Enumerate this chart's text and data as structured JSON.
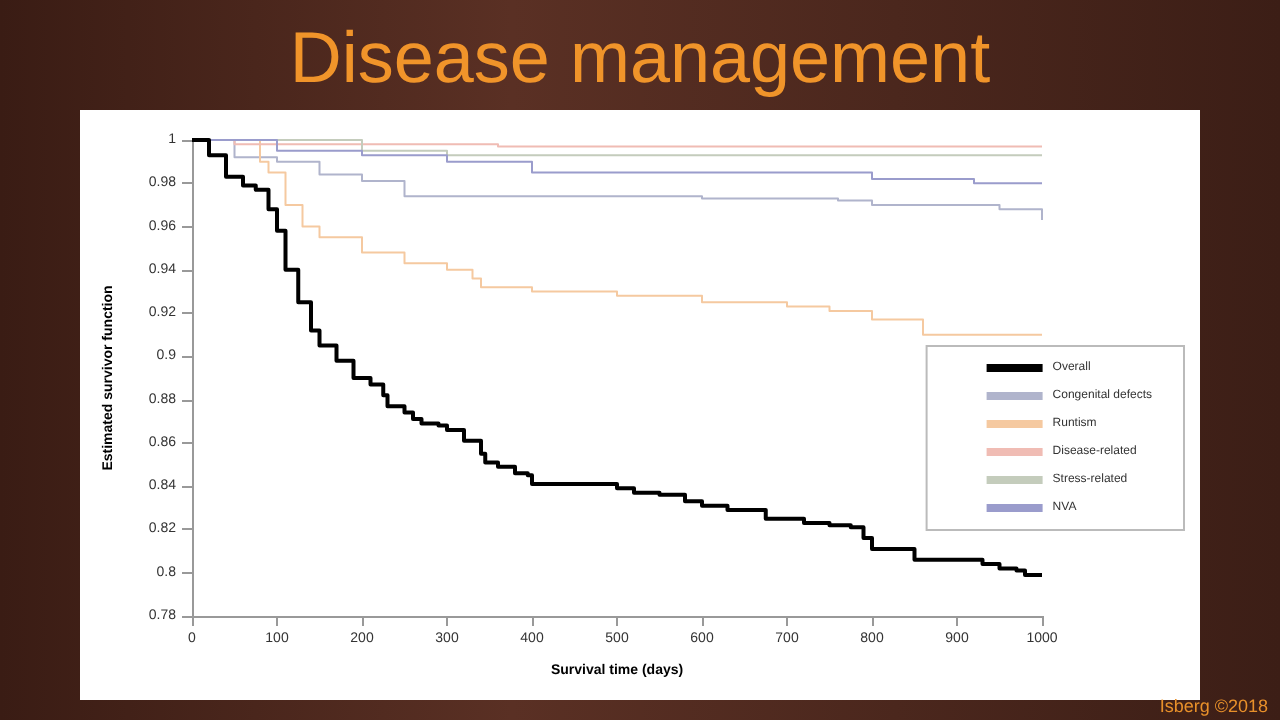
{
  "chart_data": {
    "type": "step",
    "title": "Disease management",
    "xlabel": "Survival time (days)",
    "ylabel": "Estimated survivor function",
    "xlim": [
      0,
      1000
    ],
    "xticks": [
      0,
      100,
      200,
      300,
      400,
      500,
      600,
      700,
      800,
      900,
      1000
    ],
    "ylim": [
      0.78,
      1
    ],
    "yticks": [
      0.78,
      0.8,
      0.82,
      0.84,
      0.86,
      0.88,
      0.9,
      0.92,
      0.94,
      0.96,
      0.98,
      1
    ],
    "grid": false,
    "legend": "right",
    "line_style": "solid",
    "marker": "none",
    "annotations": [
      "Isberg ©2018"
    ],
    "series": [
      {
        "name": "Overall",
        "color": "#000000",
        "x": [
          0,
          20,
          40,
          60,
          75,
          90,
          100,
          110,
          125,
          140,
          150,
          170,
          190,
          210,
          225,
          230,
          250,
          260,
          270,
          290,
          300,
          320,
          340,
          345,
          360,
          380,
          395,
          400,
          480,
          500,
          520,
          550,
          580,
          600,
          630,
          665,
          675,
          710,
          720,
          750,
          775,
          790,
          800,
          845,
          850,
          925,
          930,
          950,
          970,
          980,
          1000
        ],
        "values": [
          1,
          0.993,
          0.983,
          0.979,
          0.977,
          0.968,
          0.958,
          0.94,
          0.925,
          0.912,
          0.905,
          0.898,
          0.89,
          0.887,
          0.882,
          0.877,
          0.874,
          0.871,
          0.869,
          0.868,
          0.866,
          0.861,
          0.855,
          0.851,
          0.849,
          0.846,
          0.845,
          0.841,
          0.841,
          0.839,
          0.837,
          0.836,
          0.833,
          0.831,
          0.829,
          0.829,
          0.825,
          0.825,
          0.823,
          0.822,
          0.821,
          0.816,
          0.811,
          0.811,
          0.806,
          0.806,
          0.804,
          0.802,
          0.801,
          0.799,
          0.799
        ]
      },
      {
        "name": "Congenital defects",
        "color": "#b0b4cc",
        "x": [
          0,
          50,
          100,
          150,
          200,
          250,
          400,
          600,
          760,
          800,
          950,
          1000
        ],
        "values": [
          1,
          0.992,
          0.99,
          0.984,
          0.981,
          0.974,
          0.974,
          0.973,
          0.972,
          0.97,
          0.968,
          0.963
        ]
      },
      {
        "name": "Runtism",
        "color": "#f5c9a0",
        "x": [
          0,
          80,
          90,
          110,
          130,
          150,
          200,
          250,
          300,
          330,
          340,
          400,
          500,
          600,
          700,
          750,
          800,
          860,
          1000
        ],
        "values": [
          1,
          0.99,
          0.985,
          0.97,
          0.96,
          0.955,
          0.948,
          0.943,
          0.94,
          0.936,
          0.932,
          0.93,
          0.928,
          0.925,
          0.923,
          0.921,
          0.917,
          0.91,
          0.91
        ]
      },
      {
        "name": "Disease-related",
        "color": "#f0bcb4",
        "x": [
          0,
          50,
          360,
          1000
        ],
        "values": [
          1,
          0.998,
          0.997,
          0.997
        ]
      },
      {
        "name": "Stress-related",
        "color": "#c4ccbc",
        "x": [
          0,
          200,
          300,
          1000
        ],
        "values": [
          1,
          0.995,
          0.993,
          0.993
        ]
      },
      {
        "name": "NVA",
        "color": "#9a9ccc",
        "x": [
          0,
          100,
          200,
          300,
          400,
          600,
          800,
          920,
          1000
        ],
        "values": [
          1,
          0.995,
          0.993,
          0.99,
          0.985,
          0.985,
          0.982,
          0.98,
          0.98
        ]
      }
    ]
  }
}
